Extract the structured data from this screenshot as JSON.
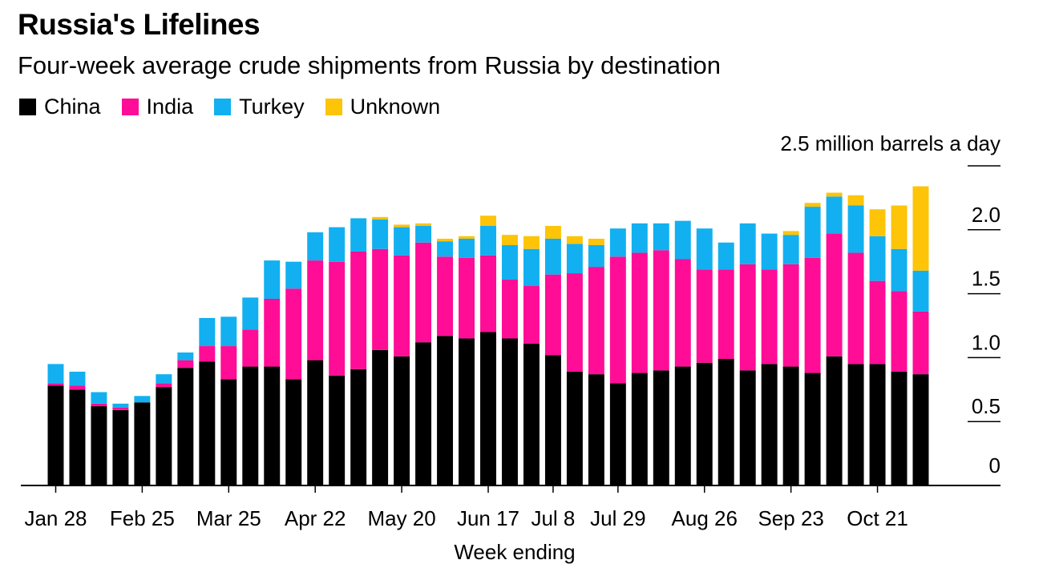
{
  "chart_data": {
    "type": "bar",
    "stacked": true,
    "title": "Russia's Lifelines",
    "subtitle": "Four-week average crude shipments from Russia by destination",
    "xlabel": "Week ending",
    "ylabel": "",
    "y_unit_label": "2.5 million barrels a day",
    "ylim": [
      0,
      2.5
    ],
    "yticks": [
      "0",
      "0.5",
      "1.0",
      "1.5",
      "2.0"
    ],
    "yticks_values": [
      0,
      0.5,
      1.0,
      1.5,
      2.0,
      2.5
    ],
    "xtick_labels": [
      {
        "label": "Jan 28",
        "index": 0
      },
      {
        "label": "Feb 25",
        "index": 4
      },
      {
        "label": "Mar 25",
        "index": 8
      },
      {
        "label": "Apr 22",
        "index": 12
      },
      {
        "label": "May 20",
        "index": 16
      },
      {
        "label": "Jun 17",
        "index": 20
      },
      {
        "label": "Jul 8",
        "index": 23
      },
      {
        "label": "Jul 29",
        "index": 26
      },
      {
        "label": "Aug 26",
        "index": 30
      },
      {
        "label": "Sep 23",
        "index": 34
      },
      {
        "label": "Oct 21",
        "index": 38
      }
    ],
    "legend": [
      {
        "name": "China",
        "color": "#000000"
      },
      {
        "name": "India",
        "color": "#ff0d96"
      },
      {
        "name": "Turkey",
        "color": "#12b0f0"
      },
      {
        "name": "Unknown",
        "color": "#fdc408"
      }
    ],
    "series": [
      {
        "name": "China",
        "color": "#000000",
        "values": [
          0.78,
          0.75,
          0.62,
          0.59,
          0.65,
          0.77,
          0.92,
          0.97,
          0.83,
          0.93,
          0.93,
          0.83,
          0.98,
          0.86,
          0.91,
          1.06,
          1.01,
          1.12,
          1.17,
          1.15,
          1.2,
          1.15,
          1.11,
          1.02,
          0.89,
          0.87,
          0.8,
          0.88,
          0.9,
          0.93,
          0.96,
          0.99,
          0.9,
          0.95,
          0.93,
          0.88,
          1.01,
          0.95,
          0.95,
          0.89,
          0.87
        ]
      },
      {
        "name": "India",
        "color": "#ff0d96",
        "values": [
          0.02,
          0.03,
          0.02,
          0.02,
          0.0,
          0.03,
          0.06,
          0.12,
          0.26,
          0.29,
          0.53,
          0.71,
          0.78,
          0.89,
          0.92,
          0.79,
          0.79,
          0.78,
          0.62,
          0.63,
          0.6,
          0.46,
          0.45,
          0.63,
          0.77,
          0.84,
          0.99,
          0.94,
          0.94,
          0.84,
          0.73,
          0.7,
          0.83,
          0.74,
          0.8,
          0.9,
          0.96,
          0.87,
          0.65,
          0.63,
          0.49
        ]
      },
      {
        "name": "Turkey",
        "color": "#12b0f0",
        "values": [
          0.15,
          0.11,
          0.09,
          0.03,
          0.05,
          0.07,
          0.06,
          0.22,
          0.23,
          0.25,
          0.3,
          0.21,
          0.22,
          0.27,
          0.26,
          0.23,
          0.22,
          0.13,
          0.12,
          0.15,
          0.23,
          0.27,
          0.29,
          0.28,
          0.23,
          0.17,
          0.22,
          0.23,
          0.21,
          0.3,
          0.32,
          0.21,
          0.32,
          0.28,
          0.23,
          0.4,
          0.29,
          0.37,
          0.35,
          0.33,
          0.32
        ]
      },
      {
        "name": "Unknown",
        "color": "#fdc408",
        "values": [
          0,
          0,
          0,
          0,
          0,
          0,
          0,
          0,
          0,
          0,
          0,
          0,
          0,
          0,
          0,
          0.02,
          0.02,
          0.02,
          0.02,
          0.02,
          0.08,
          0.08,
          0.1,
          0.1,
          0.06,
          0.05,
          0,
          0,
          0,
          0,
          0,
          0,
          0,
          0,
          0.03,
          0.03,
          0.03,
          0.08,
          0.21,
          0.34,
          0.66
        ]
      }
    ]
  }
}
